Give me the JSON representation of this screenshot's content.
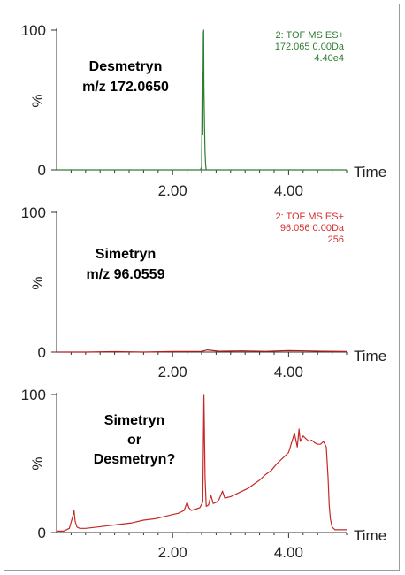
{
  "chart_data": [
    {
      "type": "line",
      "header": [
        "2: TOF MS ES+",
        "172.065 0.00Da",
        "4.40e4"
      ],
      "header_color": "#2e7d32",
      "line_color": "#2e7d32",
      "annotation": [
        "Desmetryn",
        "m/z 172.0650"
      ],
      "xlabel": "Time",
      "ylabel": "%",
      "xlim": [
        0,
        5
      ],
      "ylim": [
        0,
        100
      ],
      "x_ticks": [
        "2.00",
        "4.00"
      ],
      "y_ticks": [
        "0",
        "100"
      ],
      "series": [
        {
          "x": [
            0,
            2.48,
            2.5,
            2.51,
            2.52,
            2.53,
            2.535,
            2.54,
            2.55,
            2.56,
            2.57,
            2.58,
            5.0
          ],
          "values": [
            0,
            0,
            2,
            70,
            25,
            98,
            100,
            60,
            30,
            12,
            3,
            0,
            0
          ]
        }
      ]
    },
    {
      "type": "line",
      "header": [
        "2: TOF MS ES+",
        "96.056 0.00Da",
        "256"
      ],
      "header_color": "#d32f2f",
      "line_color": "#b71c1c",
      "annotation": [
        "Simetryn",
        "m/z 96.0559"
      ],
      "xlabel": "Time",
      "ylabel": "%",
      "xlim": [
        0,
        5
      ],
      "ylim": [
        0,
        100
      ],
      "x_ticks": [
        "2.00",
        "4.00"
      ],
      "y_ticks": [
        "0",
        "100"
      ],
      "series": [
        {
          "x": [
            0,
            0.5,
            1.0,
            1.5,
            2.0,
            2.5,
            2.6,
            2.8,
            3.2,
            3.6,
            4.0,
            4.3,
            4.6,
            5.0
          ],
          "values": [
            0,
            0,
            0.3,
            0,
            0.4,
            0.5,
            1.5,
            0.6,
            0.8,
            0.5,
            1.0,
            0.8,
            0.6,
            0.4
          ]
        }
      ]
    },
    {
      "type": "line",
      "header": [],
      "header_color": "#d32f2f",
      "line_color": "#c62828",
      "annotation": [
        "Simetryn",
        "or",
        "Desmetryn?"
      ],
      "xlabel": "Time",
      "ylabel": "%",
      "xlim": [
        0,
        5
      ],
      "ylim": [
        0,
        100
      ],
      "x_ticks": [
        "2.00",
        "4.00"
      ],
      "y_ticks": [
        "0",
        "100"
      ],
      "series": [
        {
          "x": [
            0,
            0.12,
            0.22,
            0.28,
            0.3,
            0.32,
            0.35,
            0.4,
            0.5,
            0.7,
            0.9,
            1.1,
            1.3,
            1.5,
            1.7,
            1.9,
            2.0,
            2.1,
            2.2,
            2.25,
            2.28,
            2.32,
            2.4,
            2.47,
            2.52,
            2.54,
            2.56,
            2.58,
            2.62,
            2.66,
            2.7,
            2.76,
            2.8,
            2.86,
            2.9,
            3.0,
            3.1,
            3.2,
            3.3,
            3.4,
            3.5,
            3.6,
            3.7,
            3.8,
            3.9,
            4.0,
            4.05,
            4.1,
            4.15,
            4.18,
            4.2,
            4.25,
            4.3,
            4.35,
            4.4,
            4.45,
            4.5,
            4.55,
            4.6,
            4.65,
            4.68,
            4.7,
            4.72,
            4.75,
            4.8,
            4.9,
            5.0
          ],
          "values": [
            1,
            1,
            3,
            12,
            16,
            8,
            4,
            3,
            3,
            4,
            5,
            6,
            7,
            9,
            10,
            12,
            13,
            14,
            16,
            22,
            18,
            16,
            17,
            18,
            22,
            100,
            40,
            19,
            20,
            27,
            21,
            22,
            24,
            30,
            25,
            26,
            28,
            30,
            32,
            35,
            38,
            42,
            45,
            50,
            54,
            58,
            65,
            72,
            62,
            75,
            66,
            70,
            68,
            66,
            67,
            65,
            64,
            64,
            66,
            62,
            40,
            20,
            10,
            4,
            2,
            2,
            2
          ]
        }
      ]
    }
  ]
}
